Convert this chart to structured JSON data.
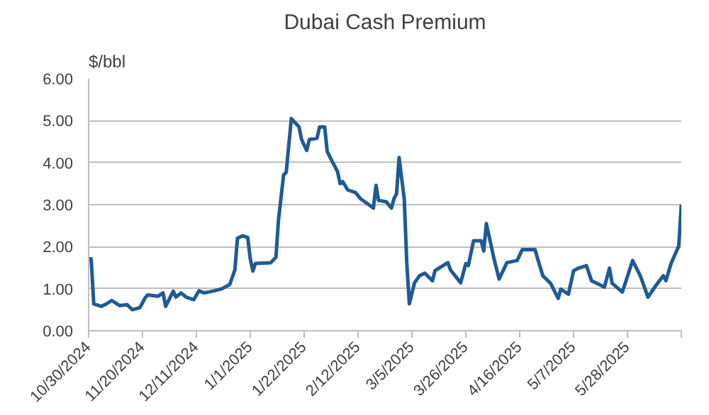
{
  "chart_data": {
    "type": "line",
    "title": "Dubai Cash Premium",
    "ylabel": "$/bbl",
    "x": [
      "2024-10-30",
      "2024-10-31",
      "2024-11-01",
      "2024-11-04",
      "2024-11-06",
      "2024-11-08",
      "2024-11-11",
      "2024-11-14",
      "2024-11-16",
      "2024-11-19",
      "2024-11-21",
      "2024-11-22",
      "2024-11-26",
      "2024-11-28",
      "2024-11-29",
      "2024-12-02",
      "2024-12-03",
      "2024-12-05",
      "2024-12-07",
      "2024-12-10",
      "2024-12-12",
      "2024-12-14",
      "2024-12-18",
      "2024-12-21",
      "2024-12-24",
      "2024-12-26",
      "2024-12-27",
      "2024-12-29",
      "2024-12-31",
      "2025-01-01",
      "2025-01-02",
      "2025-01-03",
      "2025-01-09",
      "2025-01-11",
      "2025-01-12",
      "2025-01-14",
      "2025-01-15",
      "2025-01-17",
      "2025-01-20",
      "2025-01-21",
      "2025-01-23",
      "2025-01-24",
      "2025-01-27",
      "2025-01-28",
      "2025-01-30",
      "2025-01-31",
      "2025-02-02",
      "2025-02-04",
      "2025-02-05",
      "2025-02-06",
      "2025-02-08",
      "2025-02-11",
      "2025-02-13",
      "2025-02-18",
      "2025-02-19",
      "2025-02-20",
      "2025-02-23",
      "2025-02-25",
      "2025-02-26",
      "2025-02-27",
      "2025-02-28",
      "2025-03-02",
      "2025-03-03",
      "2025-03-04",
      "2025-03-06",
      "2025-03-08",
      "2025-03-10",
      "2025-03-13",
      "2025-03-14",
      "2025-03-19",
      "2025-03-20",
      "2025-03-24",
      "2025-03-26",
      "2025-03-27",
      "2025-03-29",
      "2025-04-01",
      "2025-04-02",
      "2025-04-03",
      "2025-04-06",
      "2025-04-08",
      "2025-04-11",
      "2025-04-15",
      "2025-04-17",
      "2025-04-22",
      "2025-04-23",
      "2025-04-25",
      "2025-04-28",
      "2025-05-01",
      "2025-05-02",
      "2025-05-05",
      "2025-05-07",
      "2025-05-09",
      "2025-05-12",
      "2025-05-14",
      "2025-05-19",
      "2025-05-21",
      "2025-05-22",
      "2025-05-26",
      "2025-05-30",
      "2025-06-02",
      "2025-06-05",
      "2025-06-08",
      "2025-06-11",
      "2025-06-12",
      "2025-06-14",
      "2025-06-17",
      "2025-06-18"
    ],
    "series": [
      {
        "color": "#1f5a96",
        "values": [
          1.71,
          1.71,
          0.64,
          0.58,
          0.64,
          0.72,
          0.6,
          0.62,
          0.5,
          0.55,
          0.78,
          0.85,
          0.82,
          0.9,
          0.58,
          0.94,
          0.8,
          0.9,
          0.8,
          0.74,
          0.95,
          0.9,
          0.95,
          1.0,
          1.1,
          1.45,
          2.2,
          2.26,
          2.22,
          1.71,
          1.42,
          1.6,
          1.62,
          1.75,
          2.64,
          3.71,
          3.77,
          5.05,
          4.85,
          4.55,
          4.29,
          4.55,
          4.58,
          4.85,
          4.85,
          4.26,
          4.02,
          3.79,
          3.5,
          3.55,
          3.35,
          3.29,
          3.14,
          2.92,
          3.46,
          3.1,
          3.07,
          2.92,
          3.14,
          3.26,
          4.12,
          3.14,
          1.61,
          0.64,
          1.14,
          1.31,
          1.37,
          1.19,
          1.43,
          1.62,
          1.45,
          1.14,
          1.6,
          1.55,
          2.14,
          2.14,
          1.9,
          2.55,
          1.71,
          1.23,
          1.62,
          1.67,
          1.93,
          1.93,
          1.71,
          1.31,
          1.13,
          0.77,
          0.99,
          0.87,
          1.43,
          1.49,
          1.55,
          1.19,
          1.04,
          1.49,
          1.13,
          0.92,
          1.67,
          1.31,
          0.8,
          1.07,
          1.31,
          1.19,
          1.6,
          2.02,
          3.0
        ]
      }
    ],
    "xlim": [
      "2024-10-30",
      "2025-06-18"
    ],
    "xticks": [
      {
        "value": "2024-10-30",
        "label": "10/30/2024"
      },
      {
        "value": "2024-11-20",
        "label": "11/20/2024"
      },
      {
        "value": "2024-12-11",
        "label": "12/11/2024"
      },
      {
        "value": "2025-01-01",
        "label": "1/1/2025"
      },
      {
        "value": "2025-01-22",
        "label": "1/22/2025"
      },
      {
        "value": "2025-02-12",
        "label": "2/12/2025"
      },
      {
        "value": "2025-03-05",
        "label": "3/5/2025"
      },
      {
        "value": "2025-03-26",
        "label": "3/26/2025"
      },
      {
        "value": "2025-04-16",
        "label": "4/16/2025"
      },
      {
        "value": "2025-05-07",
        "label": "5/7/2025"
      },
      {
        "value": "2025-05-28",
        "label": "5/28/2025"
      },
      {
        "value": "2025-06-18",
        "label": null
      }
    ],
    "ylim": [
      0,
      6
    ],
    "yticks": [
      {
        "value": 0,
        "label": "0.00"
      },
      {
        "value": 1,
        "label": "1.00"
      },
      {
        "value": 2,
        "label": "2.00"
      },
      {
        "value": 3,
        "label": "3.00"
      },
      {
        "value": 4,
        "label": "4.00"
      },
      {
        "value": 5,
        "label": "5.00"
      },
      {
        "value": 6,
        "label": "6.00"
      }
    ],
    "grid": "y",
    "line_style": "solid"
  }
}
